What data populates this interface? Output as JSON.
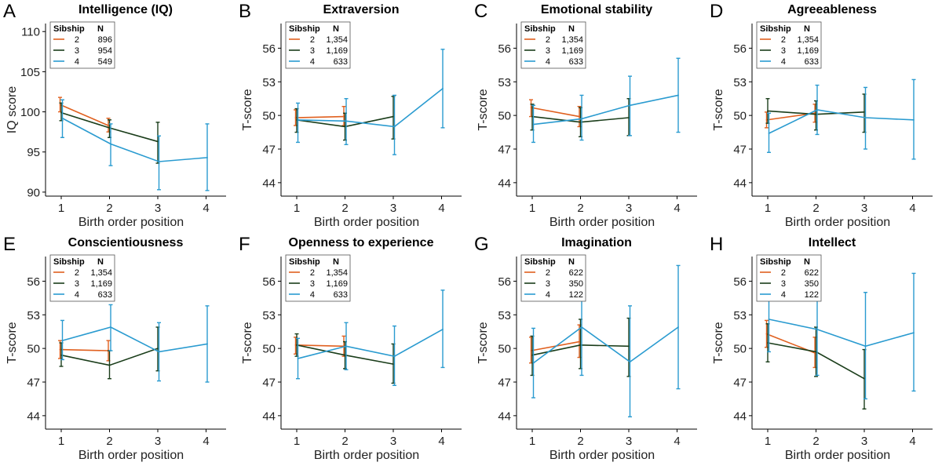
{
  "figure_id": "",
  "colors": {
    "sib2": "#e0601f",
    "sib3": "#1a3d1a",
    "sib4": "#2a9bd0",
    "axis": "#000000"
  },
  "chart_data": [
    {
      "type": "line",
      "panel": "A",
      "title": "Intelligence (IQ)",
      "xlabel": "Birth order position",
      "ylabel": "IQ score",
      "ylim": [
        89.5,
        111
      ],
      "yticks": [
        90,
        95,
        100,
        105,
        110
      ],
      "yticklabels": [
        "90",
        "95",
        "100",
        "105",
        "110"
      ],
      "xticks": [
        1,
        2,
        3,
        4
      ],
      "legend": {
        "header_sibship": "Sibship",
        "header_n": "N",
        "rows": [
          {
            "sibship": "2",
            "n": "896"
          },
          {
            "sibship": "3",
            "n": "954"
          },
          {
            "sibship": "4",
            "n": "549"
          }
        ]
      },
      "series": [
        {
          "name": "2",
          "points": [
            {
              "x": 1,
              "y": 100.9,
              "lo": 100.0,
              "hi": 101.8
            },
            {
              "x": 2,
              "y": 98.3,
              "lo": 97.5,
              "hi": 99.2
            }
          ]
        },
        {
          "name": "3",
          "points": [
            {
              "x": 1,
              "y": 99.9,
              "lo": 98.9,
              "hi": 101.1
            },
            {
              "x": 2,
              "y": 98.0,
              "lo": 96.8,
              "hi": 99.0
            },
            {
              "x": 3,
              "y": 96.3,
              "lo": 93.6,
              "hi": 98.7
            }
          ]
        },
        {
          "name": "4",
          "points": [
            {
              "x": 1,
              "y": 99.2,
              "lo": 96.8,
              "hi": 101.5
            },
            {
              "x": 2,
              "y": 96.0,
              "lo": 93.3,
              "hi": 98.5
            },
            {
              "x": 3,
              "y": 93.8,
              "lo": 90.3,
              "hi": 97.0
            },
            {
              "x": 4,
              "y": 94.3,
              "lo": 90.2,
              "hi": 98.5
            }
          ]
        }
      ]
    },
    {
      "type": "line",
      "panel": "B",
      "title": "Extraversion",
      "xlabel": "Birth order position",
      "ylabel": "T-score",
      "ylim": [
        42.8,
        58.2
      ],
      "yticks": [
        44,
        47,
        50,
        53,
        56
      ],
      "yticklabels": [
        "44",
        "47",
        "50",
        "53",
        "56"
      ],
      "xticks": [
        1,
        2,
        3,
        4
      ],
      "legend": {
        "header_sibship": "Sibship",
        "header_n": "N",
        "rows": [
          {
            "sibship": "2",
            "n": "1,354"
          },
          {
            "sibship": "3",
            "n": "1,169"
          },
          {
            "sibship": "4",
            "n": "633"
          }
        ]
      },
      "series": [
        {
          "name": "2",
          "points": [
            {
              "x": 1,
              "y": 49.8,
              "lo": 49.1,
              "hi": 50.5
            },
            {
              "x": 2,
              "y": 49.9,
              "lo": 49.1,
              "hi": 50.8
            }
          ]
        },
        {
          "name": "3",
          "points": [
            {
              "x": 1,
              "y": 49.6,
              "lo": 48.5,
              "hi": 50.6
            },
            {
              "x": 2,
              "y": 49.0,
              "lo": 47.8,
              "hi": 50.2
            },
            {
              "x": 3,
              "y": 49.9,
              "lo": 47.9,
              "hi": 51.7
            }
          ]
        },
        {
          "name": "4",
          "points": [
            {
              "x": 1,
              "y": 49.6,
              "lo": 47.6,
              "hi": 51.1
            },
            {
              "x": 2,
              "y": 49.5,
              "lo": 47.4,
              "hi": 51.5
            },
            {
              "x": 3,
              "y": 49.0,
              "lo": 46.5,
              "hi": 51.8
            },
            {
              "x": 4,
              "y": 52.4,
              "lo": 48.9,
              "hi": 55.9
            }
          ]
        }
      ]
    },
    {
      "type": "line",
      "panel": "C",
      "title": "Emotional stability",
      "xlabel": "Birth order position",
      "ylabel": "T-score",
      "ylim": [
        42.8,
        58.2
      ],
      "yticks": [
        44,
        47,
        50,
        53,
        56
      ],
      "yticklabels": [
        "44",
        "47",
        "50",
        "53",
        "56"
      ],
      "xticks": [
        1,
        2,
        3,
        4
      ],
      "legend": {
        "header_sibship": "Sibship",
        "header_n": "N",
        "rows": [
          {
            "sibship": "2",
            "n": "1,354"
          },
          {
            "sibship": "3",
            "n": "1,169"
          },
          {
            "sibship": "4",
            "n": "633"
          }
        ]
      },
      "series": [
        {
          "name": "2",
          "points": [
            {
              "x": 1,
              "y": 50.7,
              "lo": 49.9,
              "hi": 51.4
            },
            {
              "x": 2,
              "y": 49.9,
              "lo": 49.0,
              "hi": 50.8
            }
          ]
        },
        {
          "name": "3",
          "points": [
            {
              "x": 1,
              "y": 49.9,
              "lo": 48.7,
              "hi": 51.0
            },
            {
              "x": 2,
              "y": 49.4,
              "lo": 48.1,
              "hi": 50.7
            },
            {
              "x": 3,
              "y": 49.8,
              "lo": 48.2,
              "hi": 51.5
            }
          ]
        },
        {
          "name": "4",
          "points": [
            {
              "x": 1,
              "y": 49.2,
              "lo": 47.6,
              "hi": 50.9
            },
            {
              "x": 2,
              "y": 49.7,
              "lo": 47.8,
              "hi": 51.8
            },
            {
              "x": 3,
              "y": 50.9,
              "lo": 48.2,
              "hi": 53.5
            },
            {
              "x": 4,
              "y": 51.8,
              "lo": 48.5,
              "hi": 55.1
            }
          ]
        }
      ]
    },
    {
      "type": "line",
      "panel": "D",
      "title": "Agreeableness",
      "xlabel": "Birth order position",
      "ylabel": "T-score",
      "ylim": [
        42.8,
        58.2
      ],
      "yticks": [
        44,
        47,
        50,
        53,
        56
      ],
      "yticklabels": [
        "44",
        "47",
        "50",
        "53",
        "56"
      ],
      "xticks": [
        1,
        2,
        3,
        4
      ],
      "legend": {
        "header_sibship": "Sibship",
        "header_n": "N",
        "rows": [
          {
            "sibship": "2",
            "n": "1,354"
          },
          {
            "sibship": "3",
            "n": "1,169"
          },
          {
            "sibship": "4",
            "n": "633"
          }
        ]
      },
      "series": [
        {
          "name": "2",
          "points": [
            {
              "x": 1,
              "y": 49.6,
              "lo": 48.9,
              "hi": 50.3
            },
            {
              "x": 2,
              "y": 50.2,
              "lo": 49.4,
              "hi": 51.0
            }
          ]
        },
        {
          "name": "3",
          "points": [
            {
              "x": 1,
              "y": 50.4,
              "lo": 49.3,
              "hi": 51.5
            },
            {
              "x": 2,
              "y": 50.1,
              "lo": 48.7,
              "hi": 51.3
            },
            {
              "x": 3,
              "y": 50.3,
              "lo": 48.5,
              "hi": 51.9
            }
          ]
        },
        {
          "name": "4",
          "points": [
            {
              "x": 1,
              "y": 48.4,
              "lo": 46.7,
              "hi": 50.2
            },
            {
              "x": 2,
              "y": 50.5,
              "lo": 48.3,
              "hi": 52.7
            },
            {
              "x": 3,
              "y": 49.8,
              "lo": 47.0,
              "hi": 52.5
            },
            {
              "x": 4,
              "y": 49.6,
              "lo": 46.1,
              "hi": 53.2
            }
          ]
        }
      ]
    },
    {
      "type": "line",
      "panel": "E",
      "title": "Conscientiousness",
      "xlabel": "Birth order position",
      "ylabel": "T-score",
      "ylim": [
        42.8,
        58.2
      ],
      "yticks": [
        44,
        47,
        50,
        53,
        56
      ],
      "yticklabels": [
        "44",
        "47",
        "50",
        "53",
        "56"
      ],
      "xticks": [
        1,
        2,
        3,
        4
      ],
      "legend": {
        "header_sibship": "Sibship",
        "header_n": "N",
        "rows": [
          {
            "sibship": "2",
            "n": "1,354"
          },
          {
            "sibship": "3",
            "n": "1,169"
          },
          {
            "sibship": "4",
            "n": "633"
          }
        ]
      },
      "series": [
        {
          "name": "2",
          "points": [
            {
              "x": 1,
              "y": 49.9,
              "lo": 49.1,
              "hi": 50.7
            },
            {
              "x": 2,
              "y": 49.8,
              "lo": 48.9,
              "hi": 50.7
            }
          ]
        },
        {
          "name": "3",
          "points": [
            {
              "x": 1,
              "y": 49.4,
              "lo": 48.4,
              "hi": 50.5
            },
            {
              "x": 2,
              "y": 48.5,
              "lo": 47.3,
              "hi": 49.8
            },
            {
              "x": 3,
              "y": 50.0,
              "lo": 48.0,
              "hi": 51.9
            }
          ]
        },
        {
          "name": "4",
          "points": [
            {
              "x": 1,
              "y": 50.7,
              "lo": 49.0,
              "hi": 52.5
            },
            {
              "x": 2,
              "y": 51.9,
              "lo": 49.8,
              "hi": 53.9
            },
            {
              "x": 3,
              "y": 49.7,
              "lo": 47.1,
              "hi": 52.3
            },
            {
              "x": 4,
              "y": 50.4,
              "lo": 47.0,
              "hi": 53.8
            }
          ]
        }
      ]
    },
    {
      "type": "line",
      "panel": "F",
      "title": "Openness to experience",
      "xlabel": "Birth order position",
      "ylabel": "T-score",
      "ylim": [
        42.8,
        58.2
      ],
      "yticks": [
        44,
        47,
        50,
        53,
        56
      ],
      "yticklabels": [
        "44",
        "47",
        "50",
        "53",
        "56"
      ],
      "xticks": [
        1,
        2,
        3,
        4
      ],
      "legend": {
        "header_sibship": "Sibship",
        "header_n": "N",
        "rows": [
          {
            "sibship": "2",
            "n": "1,354"
          },
          {
            "sibship": "3",
            "n": "1,169"
          },
          {
            "sibship": "4",
            "n": "633"
          }
        ]
      },
      "series": [
        {
          "name": "2",
          "points": [
            {
              "x": 1,
              "y": 50.3,
              "lo": 49.5,
              "hi": 51.0
            },
            {
              "x": 2,
              "y": 50.2,
              "lo": 49.3,
              "hi": 51.1
            }
          ]
        },
        {
          "name": "3",
          "points": [
            {
              "x": 1,
              "y": 50.3,
              "lo": 49.3,
              "hi": 51.3
            },
            {
              "x": 2,
              "y": 49.4,
              "lo": 48.2,
              "hi": 50.6
            },
            {
              "x": 3,
              "y": 48.6,
              "lo": 46.9,
              "hi": 50.4
            }
          ]
        },
        {
          "name": "4",
          "points": [
            {
              "x": 1,
              "y": 49.1,
              "lo": 47.3,
              "hi": 50.9
            },
            {
              "x": 2,
              "y": 50.2,
              "lo": 48.1,
              "hi": 52.3
            },
            {
              "x": 3,
              "y": 49.3,
              "lo": 46.7,
              "hi": 52.0
            },
            {
              "x": 4,
              "y": 51.7,
              "lo": 48.3,
              "hi": 55.2
            }
          ]
        }
      ]
    },
    {
      "type": "line",
      "panel": "G",
      "title": "Imagination",
      "xlabel": "Birth order position",
      "ylabel": "T-score",
      "ylim": [
        42.8,
        58.2
      ],
      "yticks": [
        44,
        47,
        50,
        53,
        56
      ],
      "yticklabels": [
        "44",
        "47",
        "50",
        "53",
        "56"
      ],
      "xticks": [
        1,
        2,
        3,
        4
      ],
      "legend": {
        "header_sibship": "Sibship",
        "header_n": "N",
        "rows": [
          {
            "sibship": "2",
            "n": "622"
          },
          {
            "sibship": "3",
            "n": "350"
          },
          {
            "sibship": "4",
            "n": "122"
          }
        ]
      },
      "series": [
        {
          "name": "2",
          "points": [
            {
              "x": 1,
              "y": 49.8,
              "lo": 48.7,
              "hi": 51.0
            },
            {
              "x": 2,
              "y": 50.6,
              "lo": 49.2,
              "hi": 52.1
            }
          ]
        },
        {
          "name": "3",
          "points": [
            {
              "x": 1,
              "y": 49.4,
              "lo": 47.6,
              "hi": 51.1
            },
            {
              "x": 2,
              "y": 50.3,
              "lo": 48.2,
              "hi": 52.6
            },
            {
              "x": 3,
              "y": 50.2,
              "lo": 47.5,
              "hi": 52.7
            }
          ]
        },
        {
          "name": "4",
          "points": [
            {
              "x": 1,
              "y": 48.7,
              "lo": 45.6,
              "hi": 51.8
            },
            {
              "x": 2,
              "y": 51.9,
              "lo": 47.6,
              "hi": 56.2
            },
            {
              "x": 3,
              "y": 48.8,
              "lo": 43.9,
              "hi": 53.8
            },
            {
              "x": 4,
              "y": 51.9,
              "lo": 46.4,
              "hi": 57.4
            }
          ]
        }
      ]
    },
    {
      "type": "line",
      "panel": "H",
      "title": "Intellect",
      "xlabel": "Birth order position",
      "ylabel": "T-score",
      "ylim": [
        42.8,
        58.2
      ],
      "yticks": [
        44,
        47,
        50,
        53,
        56
      ],
      "yticklabels": [
        "44",
        "47",
        "50",
        "53",
        "56"
      ],
      "xticks": [
        1,
        2,
        3,
        4
      ],
      "legend": {
        "header_sibship": "Sibship",
        "header_n": "N",
        "rows": [
          {
            "sibship": "2",
            "n": "622"
          },
          {
            "sibship": "3",
            "n": "350"
          },
          {
            "sibship": "4",
            "n": "122"
          }
        ]
      },
      "series": [
        {
          "name": "2",
          "points": [
            {
              "x": 1,
              "y": 51.3,
              "lo": 50.1,
              "hi": 52.5
            },
            {
              "x": 2,
              "y": 49.6,
              "lo": 48.3,
              "hi": 51.0
            }
          ]
        },
        {
          "name": "3",
          "points": [
            {
              "x": 1,
              "y": 50.5,
              "lo": 48.8,
              "hi": 52.2
            },
            {
              "x": 2,
              "y": 49.7,
              "lo": 47.5,
              "hi": 51.9
            },
            {
              "x": 3,
              "y": 47.3,
              "lo": 44.6,
              "hi": 49.9
            }
          ]
        },
        {
          "name": "4",
          "points": [
            {
              "x": 1,
              "y": 52.6,
              "lo": 49.7,
              "hi": 55.5
            },
            {
              "x": 2,
              "y": 51.7,
              "lo": 47.6,
              "hi": 55.9
            },
            {
              "x": 3,
              "y": 50.2,
              "lo": 45.5,
              "hi": 55.0
            },
            {
              "x": 4,
              "y": 51.4,
              "lo": 46.2,
              "hi": 56.7
            }
          ]
        }
      ]
    }
  ]
}
